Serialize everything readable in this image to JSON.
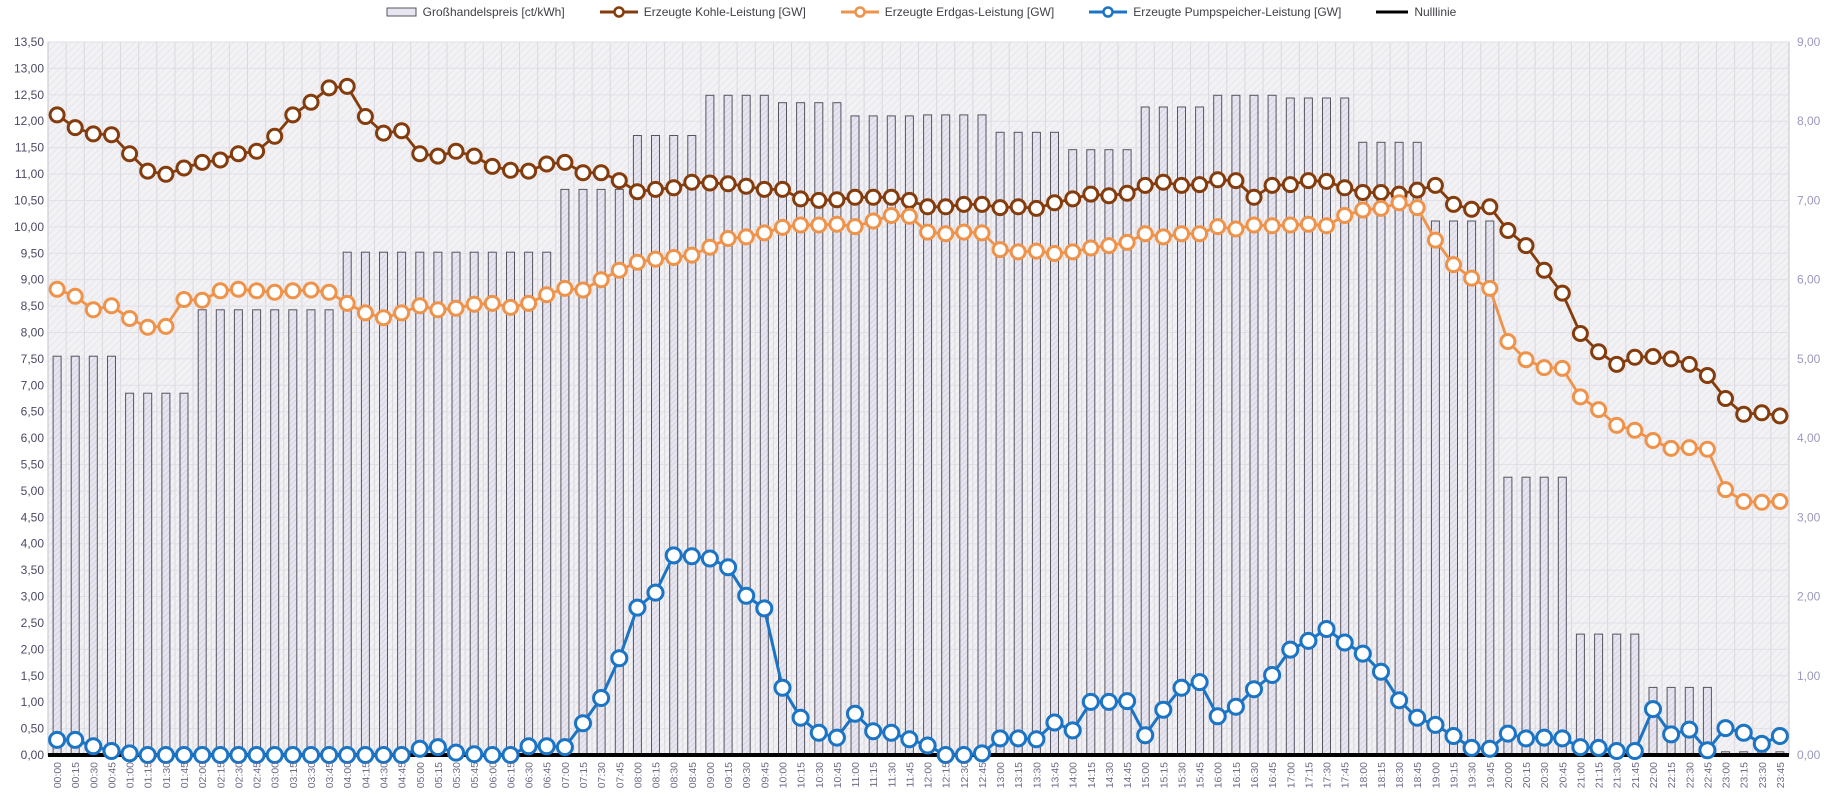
{
  "legend": {
    "items": [
      {
        "label": "Großhandelspreis [ct/kWh]",
        "swatch": "bar"
      },
      {
        "label": "Erzeugte Kohle-Leistung [GW]",
        "swatch": "line-marker",
        "color": "#843C0C"
      },
      {
        "label": "Erzeugte Erdgas-Leistung [GW]",
        "swatch": "line-marker",
        "color": "#EE9349"
      },
      {
        "label": "Erzeugte Pumpspeicher-Leistung [GW]",
        "swatch": "line-marker",
        "color": "#1B74C4"
      },
      {
        "label": "Nulllinie",
        "swatch": "solid-line",
        "color": "#000000"
      }
    ]
  },
  "chart_data": {
    "type": "bar",
    "subtype": "combo-bar-line",
    "title": "",
    "xlabel": "",
    "ylabel_left": "ct/kWh",
    "ylabel_right": "GW",
    "legend_position": "top",
    "grid": {
      "vertical": true,
      "horizontal": true
    },
    "left_axis": {
      "min": 0,
      "max": 13.5,
      "step": 0.5,
      "decimal_separator": ","
    },
    "right_axis": {
      "min": 0,
      "max": 9.0,
      "step": 1.0,
      "decimal_separator": ","
    },
    "categories": [
      "00:00",
      "00:15",
      "00:30",
      "00:45",
      "01:00",
      "01:15",
      "01:30",
      "01:45",
      "02:00",
      "02:15",
      "02:30",
      "02:45",
      "03:00",
      "03:15",
      "03:30",
      "03:45",
      "04:00",
      "04:15",
      "04:30",
      "04:45",
      "05:00",
      "05:15",
      "05:30",
      "05:45",
      "06:00",
      "06:15",
      "06:30",
      "06:45",
      "07:00",
      "07:15",
      "07:30",
      "07:45",
      "08:00",
      "08:15",
      "08:30",
      "08:45",
      "09:00",
      "09:15",
      "09:30",
      "09:45",
      "10:00",
      "10:15",
      "10:30",
      "10:45",
      "11:00",
      "11:15",
      "11:30",
      "11:45",
      "12:00",
      "12:15",
      "12:30",
      "12:45",
      "13:00",
      "13:15",
      "13:30",
      "13:45",
      "14:00",
      "14:15",
      "14:30",
      "14:45",
      "15:00",
      "15:15",
      "15:30",
      "15:45",
      "16:00",
      "16:15",
      "16:30",
      "16:45",
      "17:00",
      "17:15",
      "17:30",
      "17:45",
      "18:00",
      "18:15",
      "18:30",
      "18:45",
      "19:00",
      "19:15",
      "19:30",
      "19:45",
      "20:00",
      "20:15",
      "20:30",
      "20:45",
      "21:00",
      "21:15",
      "21:30",
      "21:45",
      "22:00",
      "22:15",
      "22:30",
      "22:45",
      "23:00",
      "23:15",
      "23:30",
      "23:45"
    ],
    "series": [
      {
        "name": "Großhandelspreis [ct/kWh]",
        "type": "bar",
        "axis": "left",
        "fill": "#E7E5EF",
        "hatch": "#CBC8DA",
        "border": "#56545F",
        "values": [
          7.55,
          7.55,
          7.55,
          7.55,
          6.85,
          6.85,
          6.85,
          6.85,
          8.43,
          8.43,
          8.43,
          8.43,
          8.43,
          8.43,
          8.43,
          8.43,
          9.52,
          9.52,
          9.52,
          9.52,
          9.52,
          9.52,
          9.52,
          9.52,
          9.52,
          9.52,
          9.52,
          9.52,
          10.71,
          10.71,
          10.71,
          10.71,
          11.73,
          11.73,
          11.73,
          11.73,
          12.49,
          12.49,
          12.49,
          12.49,
          12.35,
          12.35,
          12.35,
          12.35,
          12.1,
          12.1,
          12.1,
          12.1,
          12.12,
          12.12,
          12.12,
          12.12,
          11.79,
          11.79,
          11.79,
          11.79,
          11.46,
          11.46,
          11.46,
          11.46,
          12.27,
          12.27,
          12.27,
          12.27,
          12.49,
          12.49,
          12.49,
          12.49,
          12.44,
          12.44,
          12.44,
          12.44,
          11.6,
          11.6,
          11.6,
          11.6,
          10.11,
          10.11,
          10.11,
          10.11,
          5.26,
          5.26,
          5.26,
          5.26,
          2.29,
          2.29,
          2.29,
          2.29,
          1.28,
          1.28,
          1.28,
          1.28,
          0.06,
          0.06,
          0.06,
          0.06
        ]
      },
      {
        "name": "Erzeugte Kohle-Leistung [GW]",
        "type": "line",
        "axis": "right",
        "color": "#843C0C",
        "values": [
          8.08,
          7.92,
          7.84,
          7.83,
          7.59,
          7.37,
          7.33,
          7.41,
          7.48,
          7.51,
          7.59,
          7.62,
          7.81,
          8.08,
          8.24,
          8.42,
          8.44,
          8.06,
          7.85,
          7.88,
          7.59,
          7.56,
          7.62,
          7.56,
          7.43,
          7.38,
          7.37,
          7.46,
          7.48,
          7.35,
          7.35,
          7.25,
          7.11,
          7.14,
          7.16,
          7.23,
          7.22,
          7.21,
          7.18,
          7.14,
          7.14,
          7.02,
          7.0,
          7.01,
          7.04,
          7.04,
          7.04,
          7.0,
          6.92,
          6.92,
          6.95,
          6.95,
          6.91,
          6.92,
          6.9,
          6.97,
          7.02,
          7.08,
          7.06,
          7.09,
          7.19,
          7.23,
          7.19,
          7.2,
          7.26,
          7.25,
          7.04,
          7.19,
          7.2,
          7.25,
          7.24,
          7.16,
          7.1,
          7.1,
          7.08,
          7.13,
          7.19,
          6.95,
          6.89,
          6.92,
          6.62,
          6.43,
          6.12,
          5.83,
          5.32,
          5.09,
          4.93,
          5.02,
          5.03,
          5.0,
          4.93,
          4.79,
          4.5,
          4.3,
          4.32,
          4.28
        ]
      },
      {
        "name": "Erzeugte Erdgas-Leistung [GW]",
        "type": "line",
        "axis": "right",
        "color": "#EE9349",
        "values": [
          5.88,
          5.79,
          5.62,
          5.67,
          5.51,
          5.4,
          5.41,
          5.75,
          5.74,
          5.86,
          5.88,
          5.86,
          5.84,
          5.86,
          5.87,
          5.84,
          5.7,
          5.58,
          5.52,
          5.58,
          5.67,
          5.62,
          5.64,
          5.69,
          5.7,
          5.65,
          5.7,
          5.81,
          5.89,
          5.87,
          6.0,
          6.12,
          6.22,
          6.26,
          6.28,
          6.31,
          6.41,
          6.52,
          6.54,
          6.59,
          6.66,
          6.69,
          6.69,
          6.7,
          6.67,
          6.74,
          6.81,
          6.8,
          6.6,
          6.58,
          6.6,
          6.59,
          6.38,
          6.35,
          6.36,
          6.33,
          6.35,
          6.4,
          6.43,
          6.47,
          6.58,
          6.54,
          6.58,
          6.58,
          6.67,
          6.64,
          6.69,
          6.68,
          6.69,
          6.7,
          6.68,
          6.81,
          6.88,
          6.9,
          6.97,
          6.91,
          6.5,
          6.19,
          6.02,
          5.89,
          5.22,
          4.99,
          4.89,
          4.88,
          4.52,
          4.36,
          4.16,
          4.1,
          3.97,
          3.87,
          3.88,
          3.86,
          3.35,
          3.2,
          3.19,
          3.2
        ]
      },
      {
        "name": "Erzeugte Pumpspeicher-Leistung [GW]",
        "type": "line",
        "axis": "right",
        "color": "#1B74C4",
        "values": [
          0.19,
          0.19,
          0.11,
          0.05,
          0.02,
          0.0,
          0.0,
          0.0,
          0.0,
          0.0,
          0.0,
          0.0,
          0.0,
          0.0,
          0.0,
          0.0,
          0.0,
          0.0,
          0.0,
          0.0,
          0.08,
          0.1,
          0.03,
          0.01,
          0.0,
          0.0,
          0.11,
          0.11,
          0.1,
          0.4,
          0.72,
          1.22,
          1.86,
          2.05,
          2.52,
          2.51,
          2.48,
          2.37,
          2.01,
          1.85,
          0.85,
          0.47,
          0.28,
          0.22,
          0.52,
          0.3,
          0.28,
          0.2,
          0.12,
          0.0,
          0.0,
          0.02,
          0.21,
          0.21,
          0.2,
          0.41,
          0.31,
          0.67,
          0.67,
          0.68,
          0.25,
          0.57,
          0.85,
          0.92,
          0.49,
          0.61,
          0.83,
          1.01,
          1.33,
          1.44,
          1.59,
          1.42,
          1.28,
          1.05,
          0.69,
          0.47,
          0.38,
          0.24,
          0.09,
          0.08,
          0.27,
          0.21,
          0.22,
          0.21,
          0.1,
          0.09,
          0.05,
          0.05,
          0.58,
          0.26,
          0.32,
          0.06,
          0.34,
          0.28,
          0.14,
          0.24
        ]
      },
      {
        "name": "Nulllinie",
        "type": "constant-line",
        "axis": "right",
        "color": "#000000",
        "constant": 0
      }
    ]
  },
  "colors": {
    "plot_bg": "#F2F1F4",
    "plot_bg_hatch": "#E3E2E8",
    "plot_border": "#C6C5CE",
    "grid_vertical": "#DAD9E1",
    "grid_horizontal": "#E1E0E7",
    "left_axis_labels": "#4A4963",
    "right_axis_labels": "#9B98BE",
    "x_axis_labels": "#6E6C86",
    "legend_text": "#3F3F46"
  }
}
